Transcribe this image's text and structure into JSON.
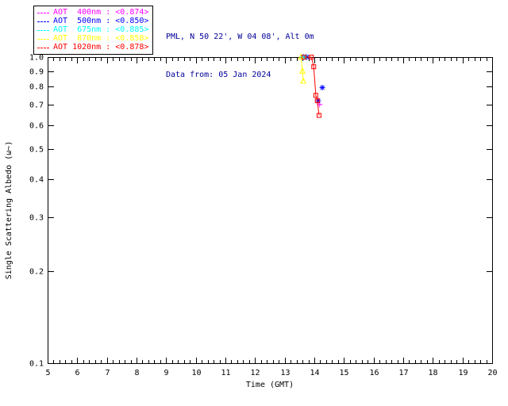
{
  "header": {
    "site": "PML, N 50 22', W 04 08', Alt 0m",
    "date": "Data from: 05 Jan 2024",
    "color": "#000099"
  },
  "legend": {
    "items": [
      {
        "label": "AOT  400nm :",
        "value": "<0.874>",
        "color": "#ff00ff"
      },
      {
        "label": "AOT  500nm :",
        "value": "<0.850>",
        "color": "#0000ff"
      },
      {
        "label": "AOT  675nm :",
        "value": "<0.885>",
        "color": "#00ffff"
      },
      {
        "label": "AOT  870nm :",
        "value": "<0.858>",
        "color": "#ffff00"
      },
      {
        "label": "AOT 1020nm :",
        "value": "<0.878>",
        "color": "#ff0000"
      }
    ]
  },
  "chart_data": {
    "type": "scatter",
    "title": "",
    "xlabel": "Time (GMT)",
    "ylabel": "Single Scattering Albedo (ω~)",
    "xlim": [
      5,
      20
    ],
    "ylim": [
      0.1,
      1.0
    ],
    "yscale": "log",
    "grid": false,
    "legend_position": "top-left",
    "xticks": [
      5,
      6,
      7,
      8,
      9,
      10,
      11,
      12,
      13,
      14,
      15,
      16,
      17,
      18,
      19,
      20
    ],
    "ytick_labels": [
      "1.0",
      "0.9",
      "0.8",
      "0.7",
      "0.6",
      "0.5",
      "0.4",
      "0.3",
      "0.2",
      "0.1"
    ],
    "series": [
      {
        "name": "AOT 400nm",
        "color": "#ff00ff",
        "marker": "plus",
        "line": false,
        "points": [
          [
            13.62,
            1.0
          ],
          [
            13.73,
            1.0
          ],
          [
            14.18,
            0.7
          ]
        ]
      },
      {
        "name": "AOT 500nm",
        "color": "#0000ff",
        "marker": "asterisk",
        "line": false,
        "points": [
          [
            13.64,
            1.0
          ],
          [
            13.75,
            1.0
          ],
          [
            14.13,
            0.72
          ],
          [
            14.27,
            0.795
          ]
        ]
      },
      {
        "name": "AOT 675nm",
        "color": "#00ffff",
        "marker": "asterisk",
        "line": false,
        "points": [
          [
            13.6,
            1.0
          ],
          [
            13.7,
            1.0
          ]
        ]
      },
      {
        "name": "AOT 870nm",
        "color": "#ffff00",
        "marker": "triangle",
        "line": true,
        "points": [
          [
            13.55,
            1.0
          ],
          [
            13.6,
            0.9
          ],
          [
            13.63,
            0.835
          ]
        ]
      },
      {
        "name": "AOT 1020nm",
        "color": "#ff0000",
        "marker": "square",
        "line": true,
        "points": [
          [
            13.65,
            1.0
          ],
          [
            13.9,
            1.0
          ],
          [
            13.98,
            0.93
          ],
          [
            14.05,
            0.75
          ],
          [
            14.1,
            0.72
          ],
          [
            14.16,
            0.645
          ]
        ]
      }
    ]
  }
}
